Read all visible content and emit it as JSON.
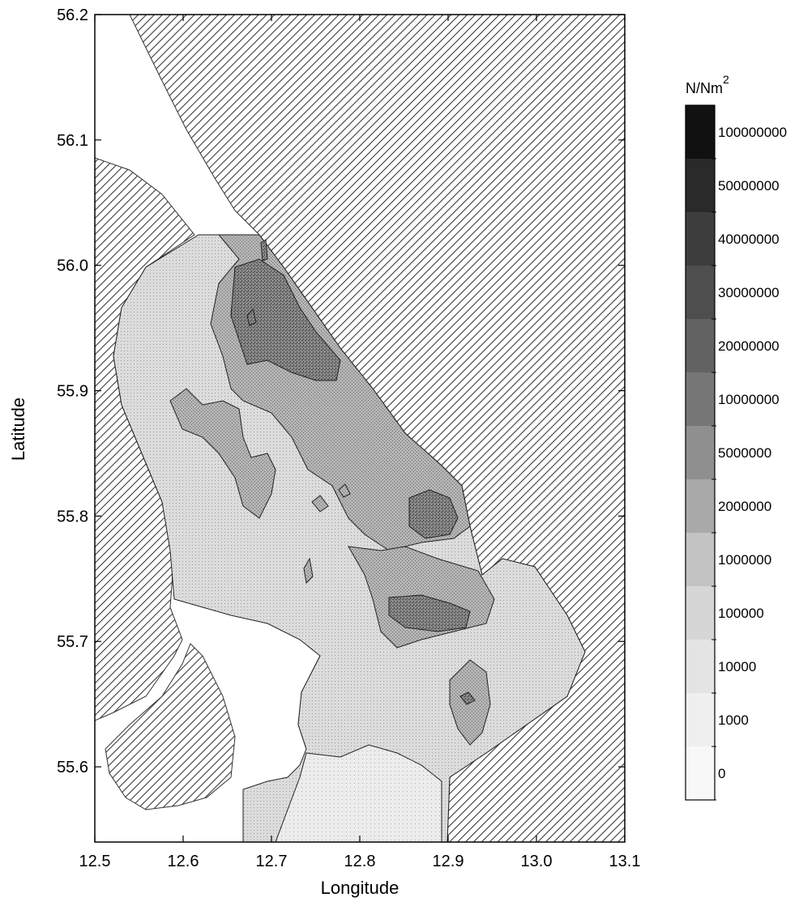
{
  "chart_data": {
    "type": "heatmap",
    "xlabel": "Longitude",
    "ylabel": "Latitude",
    "xlim": [
      12.5,
      13.1
    ],
    "ylim": [
      55.54,
      56.2
    ],
    "x_ticks": [
      "12.5",
      "12.6",
      "12.7",
      "12.8",
      "12.9",
      "13.0",
      "13.1"
    ],
    "y_ticks": [
      "56.2",
      "56.1",
      "56.0",
      "55.9",
      "55.8",
      "55.7",
      "55.6"
    ],
    "legend": {
      "unit_base": "N/Nm",
      "unit_exp": "2",
      "levels": [
        "100000000",
        "50000000",
        "40000000",
        "30000000",
        "20000000",
        "10000000",
        "5000000",
        "2000000",
        "1000000",
        "100000",
        "10000",
        "1000",
        "0"
      ],
      "shades": [
        "#111111",
        "#2a2a2a",
        "#3d3d3d",
        "#4e4e4e",
        "#626262",
        "#767676",
        "#8f8f8f",
        "#a9a9a9",
        "#c3c3c3",
        "#d6d6d6",
        "#e4e4e4",
        "#efefef",
        "#f8f8f8"
      ]
    },
    "land_pattern": "diagonal-hatch",
    "colors": {
      "land_hatch": "#3a3a3a",
      "water_low": "#dedede",
      "water_mid": "#a8a8a8",
      "water_high": "#7a7a7a"
    }
  }
}
